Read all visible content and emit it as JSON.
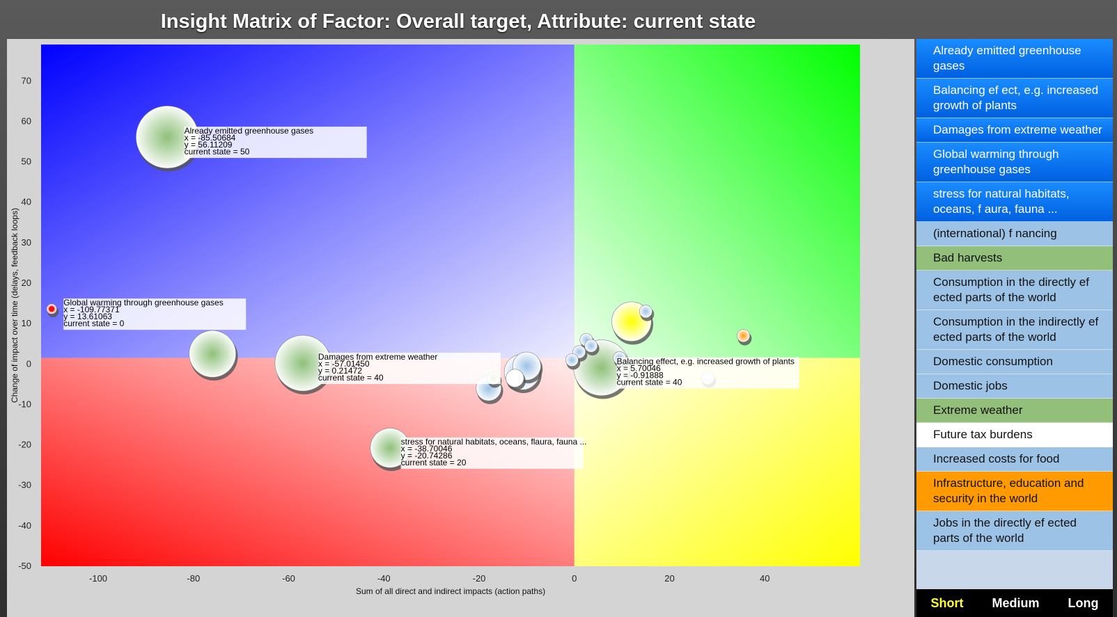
{
  "title": "Insight Matrix of Factor: Overall target, Attribute: current state",
  "sidebar": {
    "items": [
      {
        "label": "Already emitted greenhouse gases",
        "color": "blue"
      },
      {
        "label": "Balancing ef ect, e.g. increased growth of plants",
        "color": "blue"
      },
      {
        "label": "Damages from extreme weather",
        "color": "blue"
      },
      {
        "label": "Global warming through greenhouse gases",
        "color": "blue"
      },
      {
        "label": "stress for natural habitats, oceans, f aura, fauna ...",
        "color": "blue"
      },
      {
        "label": "(international) f nancing",
        "color": "lightblue"
      },
      {
        "label": "Bad harvests",
        "color": "green"
      },
      {
        "label": "Consumption in the directly ef ected parts of the world",
        "color": "lightblue"
      },
      {
        "label": "Consumption in the indirectly ef ected parts of the world",
        "color": "lightblue"
      },
      {
        "label": "Domestic consumption",
        "color": "lightblue"
      },
      {
        "label": "Domestic jobs",
        "color": "lightblue"
      },
      {
        "label": "Extreme weather",
        "color": "green"
      },
      {
        "label": "Future tax burdens",
        "color": "white"
      },
      {
        "label": "Increased costs for food",
        "color": "lightblue"
      },
      {
        "label": "Infrastructure, education and security in the world",
        "color": "orange"
      },
      {
        "label": "Jobs in the directly ef ected parts of the world",
        "color": "lightblue"
      }
    ]
  },
  "tabs": [
    {
      "label": "Short",
      "active": true
    },
    {
      "label": "Medium",
      "active": false
    },
    {
      "label": "Long",
      "active": false
    }
  ],
  "chart_data": {
    "type": "scatter",
    "title": "Insight Matrix of Factor: Overall target, Attribute: current state",
    "xlabel": "Sum of all direct and indirect impacts (action paths)",
    "ylabel": "Change of impact over time (delays, feedback loops)",
    "xlim": [
      -112,
      60
    ],
    "ylim": [
      -50,
      79
    ],
    "xticks": [
      -100,
      -80,
      -60,
      -40,
      -20,
      0,
      20,
      40
    ],
    "yticks": [
      70,
      60,
      50,
      40,
      30,
      20,
      10,
      0,
      -10,
      -20,
      -30,
      -40,
      -50
    ],
    "quadrant_split": {
      "x": 0,
      "y": 1.5
    },
    "quadrant_colors": {
      "top_left": "#0000ff",
      "top_right": "#00ff00",
      "bottom_left": "#ff0000",
      "bottom_right": "#ffff00"
    },
    "points": [
      {
        "name": "Already emitted greenhouse gases",
        "x": -85.50684,
        "y": 56.11209,
        "size": 50,
        "color": "#8fc07a",
        "label_lines": [
          "Already emitted greenhouse gases",
          "x = -85.50684",
          "y = 56.11209",
          "current state = 50"
        ]
      },
      {
        "name": "Global warming through greenhouse gases",
        "x": -109.77371,
        "y": 13.61063,
        "size": 0,
        "color": "#ee1111",
        "label_lines": [
          "Global warming through greenhouse gases",
          "x = -109.77371",
          "y = 13.61063",
          "current state = 0"
        ]
      },
      {
        "name": "Damages from extreme weather",
        "x": -57.0145,
        "y": 0.21472,
        "size": 40,
        "color": "#8fc07a",
        "label_lines": [
          "Damages from extreme weather",
          "x = -57.01450",
          "y = 0.21472",
          "current state = 40"
        ]
      },
      {
        "name": "stress for natural habitats, oceans, flaura, fauna ...",
        "x": -38.70046,
        "y": -20.74286,
        "size": 20,
        "color": "#8fc07a",
        "label_lines": [
          "stress for natural habitats, oceans, flaura, fauna ...",
          "x = -38.70046",
          "y = -20.74286",
          "current state = 20"
        ]
      },
      {
        "name": "Balancing effect, e.g. increased growth of plants",
        "x": 5.70046,
        "y": -0.91888,
        "size": 40,
        "color": "#8fc07a",
        "label_lines": [
          "Balancing effect, e.g. increased growth of plants",
          "x = 5.70046",
          "y = -0.91888",
          "current state = 40"
        ]
      },
      {
        "name": "",
        "x": -76,
        "y": 2.5,
        "size": 28,
        "color": "#8fc07a",
        "label_lines": []
      },
      {
        "name": "",
        "x": 12,
        "y": 10.5,
        "size": 20,
        "color": "#ffff00",
        "label_lines": []
      },
      {
        "name": "",
        "x": 15,
        "y": 13,
        "size": 2,
        "color": "#9cc2e6",
        "label_lines": []
      },
      {
        "name": "",
        "x": 35.5,
        "y": 7,
        "size": 2,
        "color": "#ff9a00",
        "label_lines": []
      },
      {
        "name": "",
        "x": -11,
        "y": -2,
        "size": 16,
        "color": "#9cc2e6",
        "label_lines": []
      },
      {
        "name": "",
        "x": -10,
        "y": -0.5,
        "size": 10,
        "color": "#9cc2e6",
        "label_lines": []
      },
      {
        "name": "",
        "x": -12.5,
        "y": -3.5,
        "size": 4,
        "color": "#ffffff",
        "label_lines": []
      },
      {
        "name": "",
        "x": -18,
        "y": -6,
        "size": 8,
        "color": "#9cc2e6",
        "label_lines": []
      },
      {
        "name": "",
        "x": -17,
        "y": -3.5,
        "size": 2,
        "color": "#8fc07a",
        "label_lines": []
      },
      {
        "name": "",
        "x": 2.5,
        "y": 6,
        "size": 2,
        "color": "#9cc2e6",
        "label_lines": []
      },
      {
        "name": "",
        "x": 3.5,
        "y": 4.5,
        "size": 2,
        "color": "#9cc2e6",
        "label_lines": []
      },
      {
        "name": "",
        "x": 1,
        "y": 3,
        "size": 2,
        "color": "#9cc2e6",
        "label_lines": []
      },
      {
        "name": "",
        "x": -0.5,
        "y": 1,
        "size": 2,
        "color": "#9cc2e6",
        "label_lines": []
      },
      {
        "name": "",
        "x": 9.5,
        "y": 1.5,
        "size": 2,
        "color": "#9cc2e6",
        "label_lines": []
      },
      {
        "name": "",
        "x": 28,
        "y": -3.5,
        "size": 2,
        "color": "#e8eef8",
        "label_lines": []
      }
    ]
  }
}
